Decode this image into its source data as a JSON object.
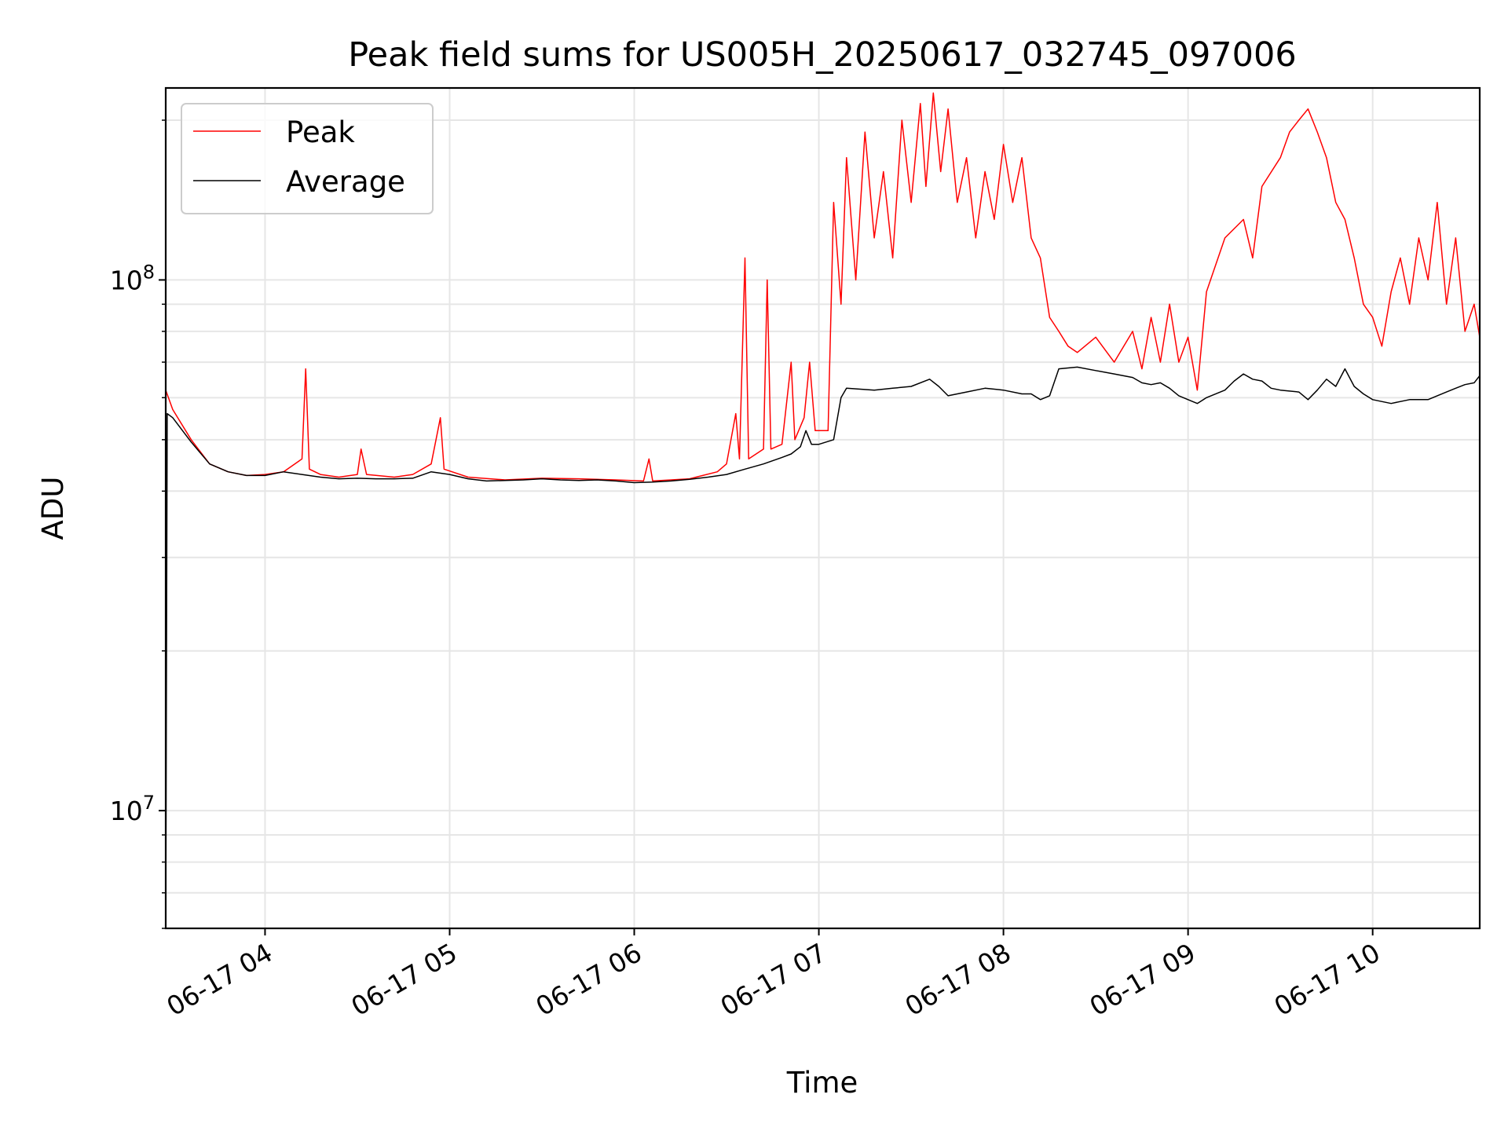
{
  "chart_data": {
    "type": "line",
    "title": "Peak field sums for US005H_20250617_032745_097006",
    "xlabel": "Time",
    "ylabel": "ADU",
    "x_range": [
      "2025-06-17 03:27:45",
      "2025-06-17 10:35:00"
    ],
    "xlim_hours": [
      3.462,
      10.58
    ],
    "x_ticks": [
      {
        "hour": 4,
        "label": "06-17 04"
      },
      {
        "hour": 5,
        "label": "06-17 05"
      },
      {
        "hour": 6,
        "label": "06-17 06"
      },
      {
        "hour": 7,
        "label": "06-17 07"
      },
      {
        "hour": 8,
        "label": "06-17 08"
      },
      {
        "hour": 9,
        "label": "06-17 09"
      },
      {
        "hour": 10,
        "label": "06-17 10"
      }
    ],
    "y_scale": "log",
    "ylim": [
      6000000,
      230000000
    ],
    "y_major_ticks": [
      {
        "value": 10000000,
        "base": "10",
        "exp": "7"
      },
      {
        "value": 100000000,
        "base": "10",
        "exp": "8"
      }
    ],
    "grid": "on (major and minor)",
    "legend": "upper-left",
    "series": [
      {
        "name": "Peak",
        "color": "#ff0000",
        "points": [
          [
            3.462,
            62000000
          ],
          [
            3.5,
            57000000
          ],
          [
            3.6,
            50000000
          ],
          [
            3.7,
            45000000
          ],
          [
            3.8,
            43500000
          ],
          [
            3.9,
            42800000
          ],
          [
            4.0,
            43000000
          ],
          [
            4.1,
            43500000
          ],
          [
            4.2,
            46000000
          ],
          [
            4.22,
            68000000
          ],
          [
            4.24,
            44000000
          ],
          [
            4.3,
            43000000
          ],
          [
            4.4,
            42500000
          ],
          [
            4.5,
            43000000
          ],
          [
            4.52,
            48000000
          ],
          [
            4.55,
            43000000
          ],
          [
            4.7,
            42500000
          ],
          [
            4.8,
            43000000
          ],
          [
            4.9,
            45000000
          ],
          [
            4.95,
            55000000
          ],
          [
            4.97,
            44000000
          ],
          [
            5.1,
            42500000
          ],
          [
            5.3,
            42000000
          ],
          [
            5.5,
            42300000
          ],
          [
            5.7,
            42200000
          ],
          [
            5.9,
            42000000
          ],
          [
            6.05,
            41800000
          ],
          [
            6.08,
            46000000
          ],
          [
            6.1,
            41800000
          ],
          [
            6.3,
            42200000
          ],
          [
            6.45,
            43500000
          ],
          [
            6.5,
            45000000
          ],
          [
            6.55,
            56000000
          ],
          [
            6.57,
            46000000
          ],
          [
            6.6,
            110000000
          ],
          [
            6.62,
            46000000
          ],
          [
            6.7,
            48000000
          ],
          [
            6.72,
            100000000
          ],
          [
            6.74,
            48000000
          ],
          [
            6.8,
            49000000
          ],
          [
            6.85,
            70000000
          ],
          [
            6.87,
            50000000
          ],
          [
            6.92,
            55000000
          ],
          [
            6.95,
            70000000
          ],
          [
            6.98,
            52000000
          ],
          [
            7.05,
            52000000
          ],
          [
            7.08,
            140000000
          ],
          [
            7.12,
            90000000
          ],
          [
            7.15,
            170000000
          ],
          [
            7.2,
            100000000
          ],
          [
            7.25,
            190000000
          ],
          [
            7.3,
            120000000
          ],
          [
            7.35,
            160000000
          ],
          [
            7.4,
            110000000
          ],
          [
            7.45,
            200000000
          ],
          [
            7.5,
            140000000
          ],
          [
            7.55,
            215000000
          ],
          [
            7.58,
            150000000
          ],
          [
            7.62,
            225000000
          ],
          [
            7.66,
            160000000
          ],
          [
            7.7,
            210000000
          ],
          [
            7.75,
            140000000
          ],
          [
            7.8,
            170000000
          ],
          [
            7.85,
            120000000
          ],
          [
            7.9,
            160000000
          ],
          [
            7.95,
            130000000
          ],
          [
            8.0,
            180000000
          ],
          [
            8.05,
            140000000
          ],
          [
            8.1,
            170000000
          ],
          [
            8.15,
            120000000
          ],
          [
            8.2,
            110000000
          ],
          [
            8.25,
            85000000
          ],
          [
            8.3,
            80000000
          ],
          [
            8.35,
            75000000
          ],
          [
            8.4,
            73000000
          ],
          [
            8.5,
            78000000
          ],
          [
            8.6,
            70000000
          ],
          [
            8.7,
            80000000
          ],
          [
            8.75,
            68000000
          ],
          [
            8.8,
            85000000
          ],
          [
            8.85,
            70000000
          ],
          [
            8.9,
            90000000
          ],
          [
            8.95,
            70000000
          ],
          [
            9.0,
            78000000
          ],
          [
            9.05,
            62000000
          ],
          [
            9.1,
            95000000
          ],
          [
            9.2,
            120000000
          ],
          [
            9.3,
            130000000
          ],
          [
            9.35,
            110000000
          ],
          [
            9.4,
            150000000
          ],
          [
            9.5,
            170000000
          ],
          [
            9.55,
            190000000
          ],
          [
            9.6,
            200000000
          ],
          [
            9.65,
            210000000
          ],
          [
            9.7,
            190000000
          ],
          [
            9.75,
            170000000
          ],
          [
            9.8,
            140000000
          ],
          [
            9.85,
            130000000
          ],
          [
            9.9,
            110000000
          ],
          [
            9.95,
            90000000
          ],
          [
            10.0,
            85000000
          ],
          [
            10.05,
            75000000
          ],
          [
            10.1,
            95000000
          ],
          [
            10.15,
            110000000
          ],
          [
            10.2,
            90000000
          ],
          [
            10.25,
            120000000
          ],
          [
            10.3,
            100000000
          ],
          [
            10.35,
            140000000
          ],
          [
            10.4,
            90000000
          ],
          [
            10.45,
            120000000
          ],
          [
            10.5,
            80000000
          ],
          [
            10.55,
            90000000
          ],
          [
            10.58,
            78000000
          ]
        ]
      },
      {
        "name": "Average",
        "color": "#000000",
        "points": [
          [
            3.462,
            6000000
          ],
          [
            3.47,
            56000000
          ],
          [
            3.5,
            55000000
          ],
          [
            3.6,
            49500000
          ],
          [
            3.7,
            45000000
          ],
          [
            3.8,
            43500000
          ],
          [
            3.9,
            42800000
          ],
          [
            4.0,
            42800000
          ],
          [
            4.1,
            43500000
          ],
          [
            4.2,
            43000000
          ],
          [
            4.3,
            42500000
          ],
          [
            4.4,
            42200000
          ],
          [
            4.5,
            42300000
          ],
          [
            4.6,
            42200000
          ],
          [
            4.7,
            42200000
          ],
          [
            4.8,
            42300000
          ],
          [
            4.9,
            43500000
          ],
          [
            5.0,
            43000000
          ],
          [
            5.1,
            42200000
          ],
          [
            5.2,
            41800000
          ],
          [
            5.3,
            41900000
          ],
          [
            5.4,
            42000000
          ],
          [
            5.5,
            42200000
          ],
          [
            5.6,
            42000000
          ],
          [
            5.7,
            41900000
          ],
          [
            5.8,
            42000000
          ],
          [
            5.9,
            41800000
          ],
          [
            6.0,
            41500000
          ],
          [
            6.1,
            41600000
          ],
          [
            6.2,
            41800000
          ],
          [
            6.3,
            42100000
          ],
          [
            6.4,
            42500000
          ],
          [
            6.5,
            43000000
          ],
          [
            6.6,
            44000000
          ],
          [
            6.7,
            45000000
          ],
          [
            6.8,
            46300000
          ],
          [
            6.85,
            47000000
          ],
          [
            6.9,
            48500000
          ],
          [
            6.93,
            52000000
          ],
          [
            6.96,
            49000000
          ],
          [
            7.0,
            49000000
          ],
          [
            7.08,
            50000000
          ],
          [
            7.12,
            60000000
          ],
          [
            7.15,
            62500000
          ],
          [
            7.3,
            62000000
          ],
          [
            7.4,
            62500000
          ],
          [
            7.5,
            63000000
          ],
          [
            7.6,
            65000000
          ],
          [
            7.65,
            63000000
          ],
          [
            7.7,
            60500000
          ],
          [
            7.8,
            61500000
          ],
          [
            7.9,
            62500000
          ],
          [
            8.0,
            62000000
          ],
          [
            8.1,
            61000000
          ],
          [
            8.15,
            61000000
          ],
          [
            8.2,
            59500000
          ],
          [
            8.25,
            60500000
          ],
          [
            8.3,
            68000000
          ],
          [
            8.4,
            68500000
          ],
          [
            8.5,
            67500000
          ],
          [
            8.6,
            66500000
          ],
          [
            8.7,
            65500000
          ],
          [
            8.75,
            64000000
          ],
          [
            8.8,
            63500000
          ],
          [
            8.85,
            64000000
          ],
          [
            8.9,
            62500000
          ],
          [
            8.95,
            60500000
          ],
          [
            9.0,
            59500000
          ],
          [
            9.05,
            58500000
          ],
          [
            9.1,
            60000000
          ],
          [
            9.2,
            62000000
          ],
          [
            9.25,
            64500000
          ],
          [
            9.3,
            66500000
          ],
          [
            9.35,
            65000000
          ],
          [
            9.4,
            64500000
          ],
          [
            9.45,
            62500000
          ],
          [
            9.5,
            62000000
          ],
          [
            9.6,
            61500000
          ],
          [
            9.65,
            59500000
          ],
          [
            9.7,
            62000000
          ],
          [
            9.75,
            65000000
          ],
          [
            9.8,
            63000000
          ],
          [
            9.85,
            68000000
          ],
          [
            9.9,
            63000000
          ],
          [
            9.95,
            61000000
          ],
          [
            10.0,
            59500000
          ],
          [
            10.1,
            58500000
          ],
          [
            10.2,
            59500000
          ],
          [
            10.3,
            59500000
          ],
          [
            10.35,
            60500000
          ],
          [
            10.4,
            61500000
          ],
          [
            10.45,
            62500000
          ],
          [
            10.5,
            63500000
          ],
          [
            10.55,
            64000000
          ],
          [
            10.58,
            66000000
          ]
        ]
      }
    ]
  }
}
